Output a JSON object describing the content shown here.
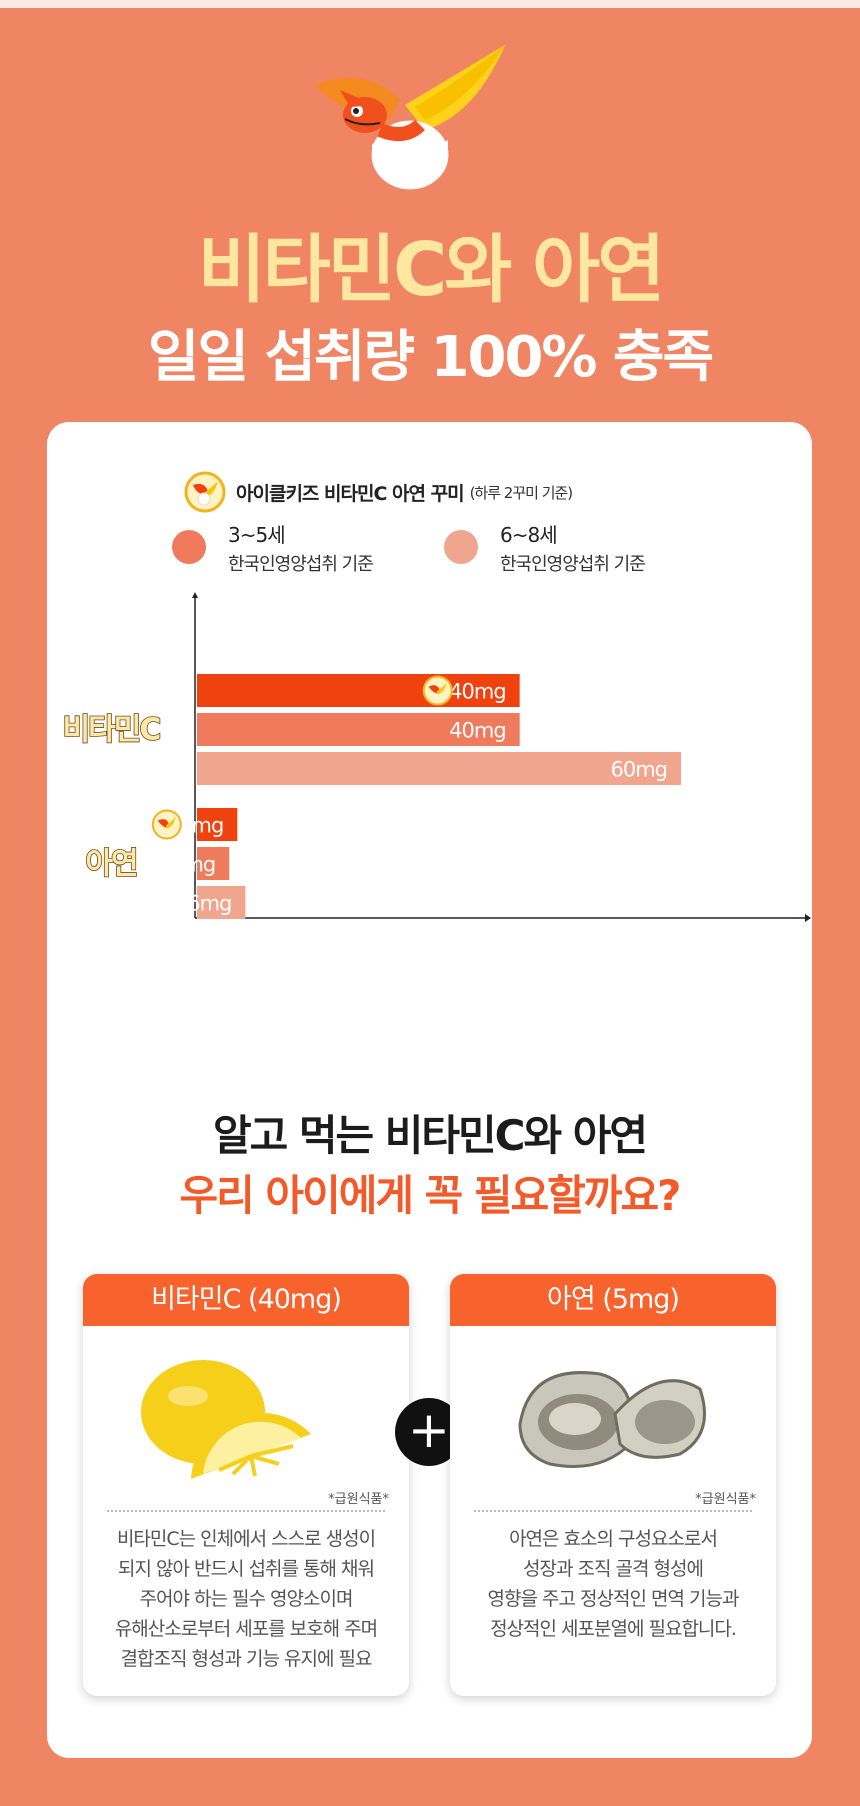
{
  "title": {
    "line1": "비타민C와 아연",
    "line2": "일일 섭취량 100% 충족"
  },
  "legend": {
    "product": "아이클키즈 비타민C 아연 꾸미",
    "product_note": "(하루 2꾸미 기준)",
    "age1": "3~5세",
    "age1_sub": "한국인영양섭취 기준",
    "age2": "6~8세",
    "age2_sub": "한국인영양섭취 기준"
  },
  "colors": {
    "background": "#f08564",
    "product_bar": "#f0420f",
    "age1_bar": "#f07a5c",
    "age2_bar": "#f0a58e",
    "title_yellow": "#ffe7a0",
    "accent": "#f35a2a"
  },
  "chart_data": {
    "type": "bar",
    "orientation": "horizontal",
    "categories": [
      "비타민C",
      "아연"
    ],
    "series": [
      {
        "name": "아이클키즈 비타민C 아연 꾸미",
        "labels": [
          "40mg",
          "5mg"
        ]
      },
      {
        "name": "3~5세",
        "labels": [
          "40mg",
          "4mg"
        ]
      },
      {
        "name": "6~8세",
        "labels": [
          "60mg",
          "6mg"
        ]
      }
    ],
    "values": [
      [
        40,
        40,
        60
      ],
      [
        5,
        4,
        6
      ]
    ],
    "unit": "mg",
    "grid": false,
    "legend_position": "top"
  },
  "section2": {
    "line1": "알고 먹는 비타민C와 아연",
    "line2": "우리 아이에게 꼭 필요할까요?"
  },
  "cards": [
    {
      "title": "비타민C (40mg)",
      "source": "*급원식품*",
      "desc": [
        "비타민C는 인체에서 스스로 생성이",
        "되지 않아 반드시 섭취를 통해 채워",
        "주어야 하는 필수 영양소이며",
        "유해산소로부터 세포를 보호해 주며",
        "결합조직 형성과 기능 유지에 필요"
      ],
      "icon": "lemon"
    },
    {
      "title": "아연 (5mg)",
      "source": "*급원식품*",
      "desc": [
        "아연은 효소의 구성요소로서",
        "성장과 조직 골격 형성에",
        "영향을 주고 정상적인 면역 기능과",
        "정상적인 세포분열에 필요합니다."
      ],
      "icon": "oyster"
    }
  ],
  "plus_symbol": "+"
}
